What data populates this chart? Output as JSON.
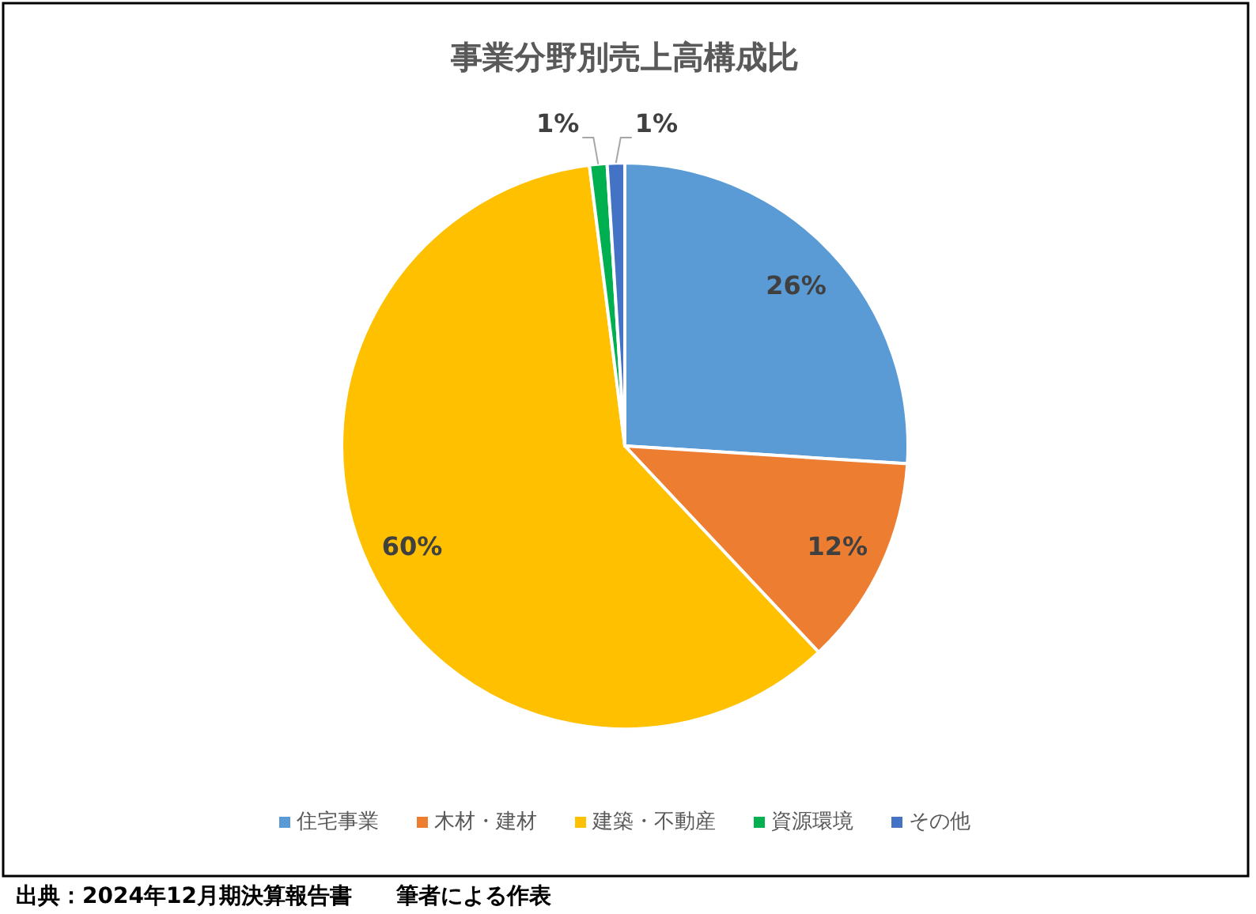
{
  "chart_data": {
    "type": "pie",
    "title": "事業分野別売上高構成比",
    "categories": [
      "住宅事業",
      "木材・建材",
      "建築・不動産",
      "資源環境",
      "その他"
    ],
    "values": [
      26,
      12,
      60,
      1,
      1
    ],
    "colors": [
      "#5b9bd5",
      "#ed7d31",
      "#ffc000",
      "#00b050",
      "#4472c4"
    ],
    "value_labels": [
      "26%",
      "12%",
      "60%",
      "1%",
      "1%"
    ],
    "legend": "bottom",
    "annotations": [
      "出典：2024年12月期決算報告書　　筆者による作表"
    ]
  }
}
